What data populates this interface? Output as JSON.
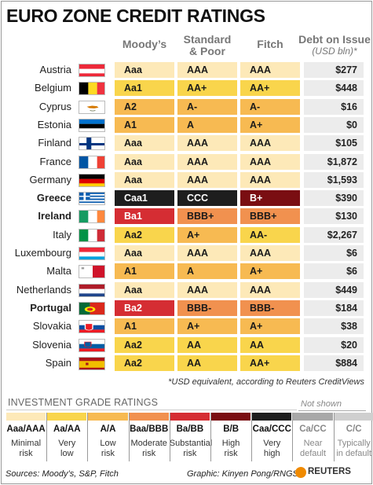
{
  "title": "EURO ZONE CREDIT RATINGS",
  "headers": {
    "moodys": "Moody’s",
    "sp_line1": "Standard",
    "sp_line2": "& Poor",
    "fitch": "Fitch",
    "debt_line1": "Debt on Issue",
    "debt_line2": "(USD bln)*"
  },
  "colors": {
    "minimal": "#fde9b8",
    "very_low": "#f9d54c",
    "low": "#f7ba52",
    "moderate": "#f1914f",
    "substantial": "#d52d33",
    "high": "#7a0e12",
    "very_high": "#1e1e1e",
    "near_default": "#a8a8a8",
    "default": "#cfcfcf"
  },
  "chart_data": {
    "type": "table",
    "title": "EURO ZONE CREDIT RATINGS",
    "columns": [
      "Moody’s",
      "Standard & Poor",
      "Fitch",
      "Debt on Issue (USD bln)*"
    ],
    "rows": [
      {
        "country": "Austria",
        "flag": "austria",
        "moodys": "Aaa",
        "sp": "AAA",
        "fitch": "AAA",
        "debt": "$277",
        "bold": false
      },
      {
        "country": "Belgium",
        "flag": "belgium",
        "moodys": "Aa1",
        "sp": "AA+",
        "fitch": "AA+",
        "debt": "$448",
        "bold": false
      },
      {
        "country": "Cyprus",
        "flag": "cyprus",
        "moodys": "A2",
        "sp": "A-",
        "fitch": "A-",
        "debt": "$16",
        "bold": false
      },
      {
        "country": "Estonia",
        "flag": "estonia",
        "moodys": "A1",
        "sp": "A",
        "fitch": "A+",
        "debt": "$0",
        "bold": false
      },
      {
        "country": "Finland",
        "flag": "finland",
        "moodys": "Aaa",
        "sp": "AAA",
        "fitch": "AAA",
        "debt": "$105",
        "bold": false
      },
      {
        "country": "France",
        "flag": "france",
        "moodys": "Aaa",
        "sp": "AAA",
        "fitch": "AAA",
        "debt": "$1,872",
        "bold": false
      },
      {
        "country": "Germany",
        "flag": "germany",
        "moodys": "Aaa",
        "sp": "AAA",
        "fitch": "AAA",
        "debt": "$1,593",
        "bold": false
      },
      {
        "country": "Greece",
        "flag": "greece",
        "moodys": "Caa1",
        "sp": "CCC",
        "fitch": "B+",
        "debt": "$390",
        "bold": true
      },
      {
        "country": "Ireland",
        "flag": "ireland",
        "moodys": "Ba1",
        "sp": "BBB+",
        "fitch": "BBB+",
        "debt": "$130",
        "bold": true
      },
      {
        "country": "Italy",
        "flag": "italy",
        "moodys": "Aa2",
        "sp": "A+",
        "fitch": "AA-",
        "debt": "$2,267",
        "bold": false
      },
      {
        "country": "Luxembourg",
        "flag": "luxembourg",
        "moodys": "Aaa",
        "sp": "AAA",
        "fitch": "AAA",
        "debt": "$6",
        "bold": false
      },
      {
        "country": "Malta",
        "flag": "malta",
        "moodys": "A1",
        "sp": "A",
        "fitch": "A+",
        "debt": "$6",
        "bold": false
      },
      {
        "country": "Netherlands",
        "flag": "netherlands",
        "moodys": "Aaa",
        "sp": "AAA",
        "fitch": "AAA",
        "debt": "$449",
        "bold": false
      },
      {
        "country": "Portugal",
        "flag": "portugal",
        "moodys": "Ba2",
        "sp": "BBB-",
        "fitch": "BBB-",
        "debt": "$184",
        "bold": true
      },
      {
        "country": "Slovakia",
        "flag": "slovakia",
        "moodys": "A1",
        "sp": "A+",
        "fitch": "A+",
        "debt": "$38",
        "bold": false
      },
      {
        "country": "Slovenia",
        "flag": "slovenia",
        "moodys": "Aa2",
        "sp": "AA",
        "fitch": "AA",
        "debt": "$20",
        "bold": false
      },
      {
        "country": "Spain",
        "flag": "spain",
        "moodys": "Aa2",
        "sp": "AA",
        "fitch": "AA+",
        "debt": "$884",
        "bold": false
      }
    ]
  },
  "footnote": "*USD equivalent, according to Reuters CreditViews",
  "legend": {
    "title": "INVESTMENT GRADE RATINGS",
    "not_shown": "Not shown",
    "items": [
      {
        "code": "Aaa/AAA",
        "line1": "Minimal",
        "line2": "risk",
        "color": "#fde9b8",
        "text_color": "#111"
      },
      {
        "code": "Aa/AA",
        "line1": "Very",
        "line2": "low",
        "color": "#f9d54c",
        "text_color": "#111"
      },
      {
        "code": "A/A",
        "line1": "Low",
        "line2": "risk",
        "color": "#f7ba52",
        "text_color": "#111"
      },
      {
        "code": "Baa/BBB",
        "line1": "Moderate",
        "line2": "risk",
        "color": "#f1914f",
        "text_color": "#111"
      },
      {
        "code": "Ba/BB",
        "line1": "Substantial",
        "line2": "risk",
        "color": "#d52d33",
        "text_color": "#111"
      },
      {
        "code": "B/B",
        "line1": "High",
        "line2": "risk",
        "color": "#7a0e12",
        "text_color": "#111"
      },
      {
        "code": "Caa/CCC",
        "line1": "Very",
        "line2": "high",
        "color": "#1e1e1e",
        "text_color": "#111"
      },
      {
        "code": "Ca/CC",
        "line1": "Near",
        "line2": "default",
        "color": "#a8a8a8",
        "text_color": "#888"
      },
      {
        "code": "C/C",
        "line1": "Typically",
        "line2": "in default",
        "color": "#cfcfcf",
        "text_color": "#888"
      }
    ]
  },
  "sources": "Sources: Moody’s, S&P, Fitch",
  "graphic": "Graphic: Kinyen Pong/RNGS",
  "logo": "REUTERS"
}
